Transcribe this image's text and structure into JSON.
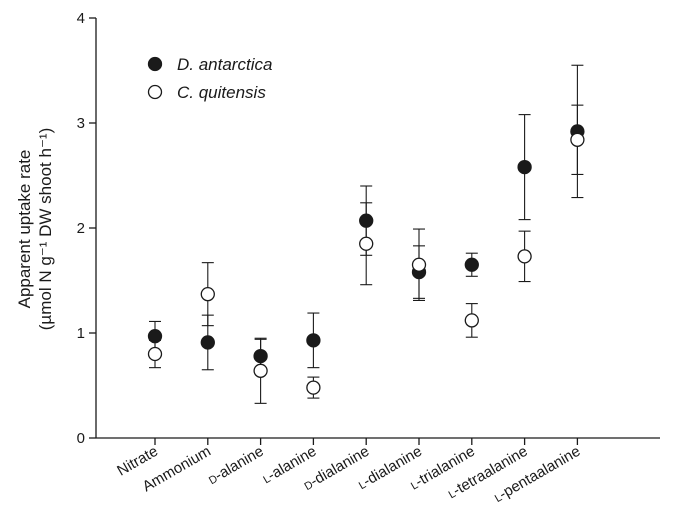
{
  "chart_data": {
    "type": "scatter",
    "categories": [
      "Nitrate",
      "Ammonium",
      "D-alanine",
      "L-alanine",
      "D-dialanine",
      "L-dialanine",
      "L-trialanine",
      "L-tetraalanine",
      "L-pentaalanine"
    ],
    "category_labels": [
      {
        "prefix": "",
        "name": "Nitrate"
      },
      {
        "prefix": "",
        "name": "Ammonium"
      },
      {
        "prefix": "D",
        "name": "-alanine"
      },
      {
        "prefix": "L",
        "name": "-alanine"
      },
      {
        "prefix": "D",
        "name": "-dialanine"
      },
      {
        "prefix": "L",
        "name": "-dialanine"
      },
      {
        "prefix": "L",
        "name": "-trialanine"
      },
      {
        "prefix": "L",
        "name": "-tetraalanine"
      },
      {
        "prefix": "L",
        "name": "-pentaalanine"
      }
    ],
    "ylabel_line1": "Apparent uptake rate",
    "ylabel_line2": "(µmol N g⁻¹ DW shoot h⁻¹)",
    "ylim": [
      0,
      4
    ],
    "yticks": [
      0,
      1,
      2,
      3,
      4
    ],
    "legend_position": "top-left",
    "grid": false,
    "series": [
      {
        "name": "D. antarctica",
        "marker": "filled-circle",
        "color": "#1a1a1a",
        "values": [
          0.97,
          0.91,
          0.78,
          0.93,
          2.07,
          1.58,
          1.65,
          2.58,
          2.92
        ],
        "error": [
          0.14,
          0.26,
          0.16,
          0.26,
          0.33,
          0.25,
          0.11,
          0.5,
          0.63
        ]
      },
      {
        "name": "C. quitensis",
        "marker": "open-circle",
        "color": "#1a1a1a",
        "values": [
          0.8,
          1.37,
          0.64,
          0.48,
          1.85,
          1.65,
          1.12,
          1.73,
          2.84
        ],
        "error": [
          0.13,
          0.3,
          0.31,
          0.1,
          0.39,
          0.34,
          0.16,
          0.24,
          0.33
        ]
      }
    ]
  }
}
